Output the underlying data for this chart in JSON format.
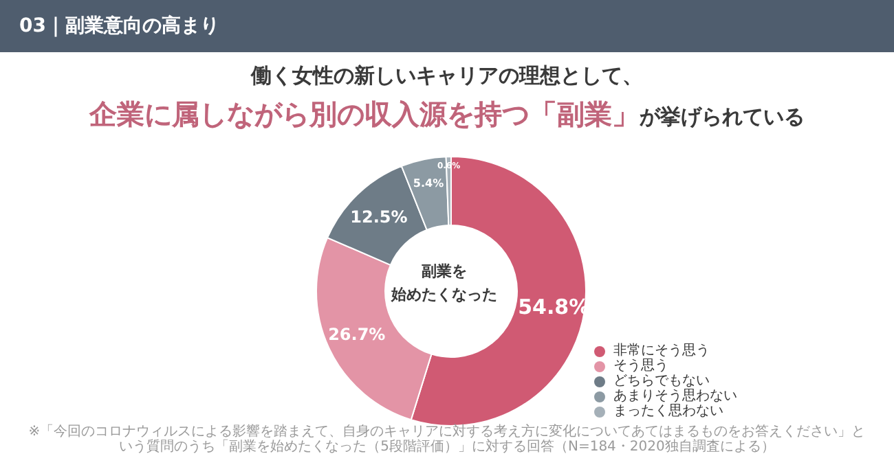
{
  "chart_data": {
    "type": "donut",
    "title": "03｜副業意向の高まり",
    "subtitle": "働く女性の新しいキャリアの理想として、",
    "annotations": [
      "企業に属しながら別の収入源を持つ「副業」",
      "が挙げられている",
      "副業を",
      "始めたくなった",
      "※「今回のコロナウィルスによる影響を踏まえて、自身のキャリアに対する考え方に変化についてあてはまるものをお答えください」という質問のうち「副業を始めたくなった（5段階評価）」に対する回答（N=184・2020独自調査による）"
    ],
    "categories": [
      "非常にそう思う",
      "そう思う",
      "どちらでもない",
      "あまりそう思わない",
      "まったく思わない"
    ],
    "values": [
      54.8,
      26.7,
      12.5,
      5.4,
      0.6
    ],
    "colors": [
      "#d05a73",
      "#e394a6",
      "#6e7c87",
      "#8c9aa3",
      "#a5b0b8"
    ],
    "value_labels": [
      "54.8%",
      "26.7%",
      "12.5%",
      "5.4%",
      "0.6%"
    ],
    "legend": "bottom right"
  }
}
